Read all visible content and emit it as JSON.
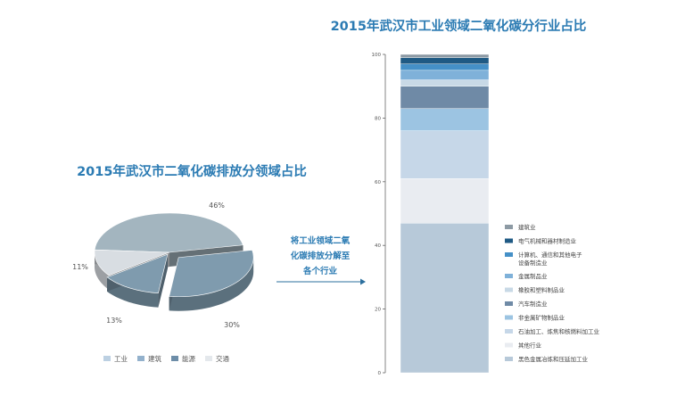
{
  "left_chart": {
    "title": "2015年武汉市二氧化碳排放分领域占比",
    "chart_data": {
      "type": "pie",
      "slices": [
        {
          "label": "工业",
          "value": 46,
          "display": "46%",
          "color": "#a3b5bf"
        },
        {
          "label": "建筑",
          "value": 30,
          "display": "30%",
          "color": "#7f9bae"
        },
        {
          "label": "能源",
          "value": 13,
          "display": "13%",
          "color": "#7f9bae"
        },
        {
          "label": "交通",
          "value": 11,
          "display": "11%",
          "color": "#d8dde2"
        }
      ],
      "legend": [
        {
          "label": "工业",
          "color": "#bcd0e2"
        },
        {
          "label": "建筑",
          "color": "#93b1cc"
        },
        {
          "label": "能源",
          "color": "#6d8da8"
        },
        {
          "label": "交通",
          "color": "#e4e8ec"
        }
      ],
      "legend_position": "bottom"
    }
  },
  "arrow_text": {
    "line1": "将工业领域二氧",
    "line2": "化碳排放分解至",
    "line3": "各个行业"
  },
  "right_chart": {
    "title": "2015年武汉市工业领域二氧化碳分行业占比",
    "chart_data": {
      "type": "bar",
      "stacked": true,
      "ylim": [
        0,
        100
      ],
      "yticks": [
        0,
        20,
        40,
        60,
        80,
        100
      ],
      "series": [
        {
          "name": "黑色金属冶炼和压延加工业",
          "value": 47,
          "color": "#b7c9d9"
        },
        {
          "name": "其他行业",
          "value": 14,
          "color": "#e9ecf1"
        },
        {
          "name": "石油加工、炼焦和核燃料加工业",
          "value": 15,
          "color": "#c6d7e8"
        },
        {
          "name": "非金属矿物制品业",
          "value": 7,
          "color": "#9cc4e2"
        },
        {
          "name": "汽车制造业",
          "value": 7,
          "color": "#6f8aa6"
        },
        {
          "name": "橡胶和塑料制品业",
          "value": 2,
          "color": "#c8d9e6"
        },
        {
          "name": "金属制品业",
          "value": 3,
          "color": "#7fb1d9"
        },
        {
          "name": "计算机、通信和其他电子设备制造业",
          "value": 2,
          "color": "#4590c7"
        },
        {
          "name": "电气机械和器材制造业",
          "value": 2,
          "color": "#1f5a84"
        },
        {
          "name": "建筑业",
          "value": 1,
          "color": "#8d9aa4"
        }
      ],
      "legend_position": "right"
    }
  }
}
